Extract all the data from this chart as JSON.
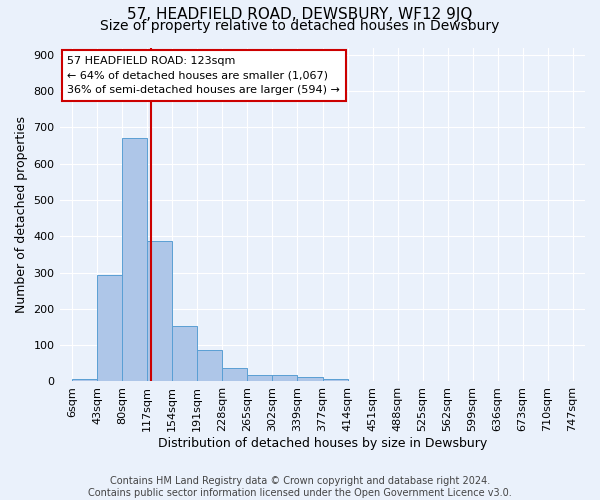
{
  "title": "57, HEADFIELD ROAD, DEWSBURY, WF12 9JQ",
  "subtitle": "Size of property relative to detached houses in Dewsbury",
  "xlabel": "Distribution of detached houses by size in Dewsbury",
  "ylabel": "Number of detached properties",
  "footer": "Contains HM Land Registry data © Crown copyright and database right 2024.\nContains public sector information licensed under the Open Government Licence v3.0.",
  "bin_labels": [
    "6sqm",
    "43sqm",
    "80sqm",
    "117sqm",
    "154sqm",
    "191sqm",
    "228sqm",
    "265sqm",
    "302sqm",
    "339sqm",
    "377sqm",
    "414sqm",
    "451sqm",
    "488sqm",
    "525sqm",
    "562sqm",
    "599sqm",
    "636sqm",
    "673sqm",
    "710sqm",
    "747sqm"
  ],
  "bin_edges": [
    6,
    43,
    80,
    117,
    154,
    191,
    228,
    265,
    302,
    339,
    377,
    414,
    451,
    488,
    525,
    562,
    599,
    636,
    673,
    710,
    747
  ],
  "bar_heights": [
    8,
    293,
    672,
    388,
    153,
    86,
    38,
    18,
    18,
    12,
    8,
    0,
    0,
    0,
    0,
    0,
    0,
    0,
    0,
    0
  ],
  "bar_color": "#aec6e8",
  "bar_edge_color": "#5a9fd4",
  "vline_x": 123,
  "vline_color": "#cc0000",
  "annotation_line1": "57 HEADFIELD ROAD: 123sqm",
  "annotation_line2": "← 64% of detached houses are smaller (1,067)",
  "annotation_line3": "36% of semi-detached houses are larger (594) →",
  "annotation_box_color": "#ffffff",
  "annotation_box_edge_color": "#cc0000",
  "ylim": [
    0,
    920
  ],
  "yticks": [
    0,
    100,
    200,
    300,
    400,
    500,
    600,
    700,
    800,
    900
  ],
  "background_color": "#eaf1fb",
  "grid_color": "#ffffff",
  "title_fontsize": 11,
  "subtitle_fontsize": 10,
  "label_fontsize": 9,
  "tick_fontsize": 8,
  "footer_fontsize": 7,
  "annotation_fontsize": 8
}
